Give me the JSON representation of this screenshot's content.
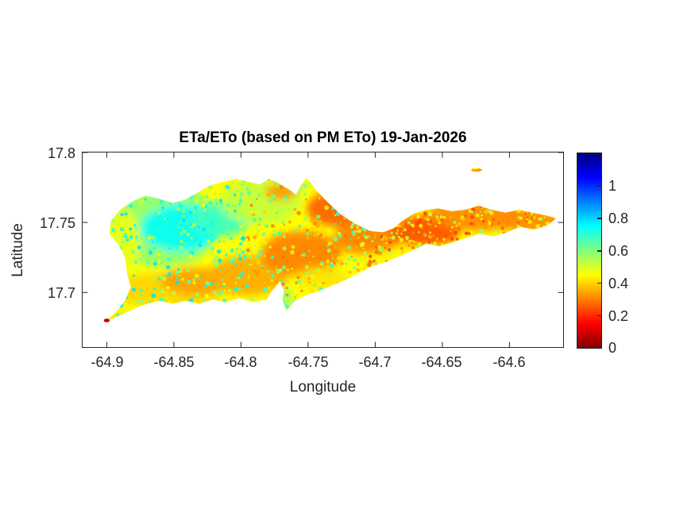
{
  "chart_data": {
    "type": "heatmap",
    "title": "ETa/ETo (based on PM ETo) 19-Jan-2026",
    "xlabel": "Longitude",
    "ylabel": "Latitude",
    "xlim": [
      -64.918,
      -64.56
    ],
    "ylim": [
      17.661,
      17.8
    ],
    "grid": false,
    "x_ticks": [
      -64.9,
      -64.85,
      -64.8,
      -64.75,
      -64.7,
      -64.65,
      -64.6
    ],
    "x_tick_labels": [
      "-64.9",
      "-64.85",
      "-64.8",
      "-64.75",
      "-64.7",
      "-64.65",
      "-64.6"
    ],
    "y_ticks": [
      17.7,
      17.75,
      17.8
    ],
    "y_tick_labels": [
      "17.7",
      "17.75",
      "17.8"
    ],
    "colorbar": {
      "min": 0,
      "max": 1.2,
      "ticks": [
        0,
        0.2,
        0.4,
        0.6,
        0.8,
        1
      ],
      "tick_labels": [
        "0",
        "0.2",
        "0.4",
        "0.6",
        "0.8",
        "1"
      ],
      "colormap": "jet-reversed (0 = dark red, 1.2 = dark blue)",
      "position": "right"
    },
    "map": {
      "description": "Island raster of ETa/ETo ratio; northwest interior highest (cyan/green ~0.6-0.8), central and eastern areas lowest (orange/red ~0.2-0.4) with dense yellow/cyan speckling",
      "base_value": 0.45,
      "outline": [
        [
          -64.901,
          17.679
        ],
        [
          -64.893,
          17.686
        ],
        [
          -64.886,
          17.695
        ],
        [
          -64.882,
          17.704
        ],
        [
          -64.885,
          17.714
        ],
        [
          -64.886,
          17.724
        ],
        [
          -64.891,
          17.734
        ],
        [
          -64.898,
          17.742
        ],
        [
          -64.897,
          17.751
        ],
        [
          -64.89,
          17.759
        ],
        [
          -64.881,
          17.765
        ],
        [
          -64.871,
          17.769
        ],
        [
          -64.861,
          17.767
        ],
        [
          -64.851,
          17.764
        ],
        [
          -64.842,
          17.766
        ],
        [
          -64.833,
          17.771
        ],
        [
          -64.824,
          17.776
        ],
        [
          -64.814,
          17.779
        ],
        [
          -64.804,
          17.781
        ],
        [
          -64.794,
          17.779
        ],
        [
          -64.786,
          17.777
        ],
        [
          -64.779,
          17.781
        ],
        [
          -64.772,
          17.778
        ],
        [
          -64.765,
          17.774
        ],
        [
          -64.759,
          17.77
        ],
        [
          -64.755,
          17.777
        ],
        [
          -64.751,
          17.782
        ],
        [
          -64.745,
          17.774
        ],
        [
          -64.736,
          17.765
        ],
        [
          -64.726,
          17.756
        ],
        [
          -64.715,
          17.749
        ],
        [
          -64.704,
          17.744
        ],
        [
          -64.694,
          17.743
        ],
        [
          -64.686,
          17.746
        ],
        [
          -64.68,
          17.751
        ],
        [
          -64.672,
          17.756
        ],
        [
          -64.663,
          17.759
        ],
        [
          -64.653,
          17.76
        ],
        [
          -64.643,
          17.758
        ],
        [
          -64.633,
          17.759
        ],
        [
          -64.623,
          17.762
        ],
        [
          -64.613,
          17.759
        ],
        [
          -64.603,
          17.757
        ],
        [
          -64.593,
          17.759
        ],
        [
          -64.583,
          17.757
        ],
        [
          -64.573,
          17.755
        ],
        [
          -64.565,
          17.753
        ],
        [
          -64.572,
          17.748
        ],
        [
          -64.582,
          17.745
        ],
        [
          -64.592,
          17.747
        ],
        [
          -64.602,
          17.743
        ],
        [
          -64.612,
          17.74
        ],
        [
          -64.622,
          17.742
        ],
        [
          -64.632,
          17.739
        ],
        [
          -64.642,
          17.736
        ],
        [
          -64.652,
          17.733
        ],
        [
          -64.662,
          17.735
        ],
        [
          -64.672,
          17.73
        ],
        [
          -64.682,
          17.726
        ],
        [
          -64.692,
          17.722
        ],
        [
          -64.702,
          17.719
        ],
        [
          -64.712,
          17.714
        ],
        [
          -64.722,
          17.709
        ],
        [
          -64.732,
          17.705
        ],
        [
          -64.742,
          17.701
        ],
        [
          -64.752,
          17.698
        ],
        [
          -64.76,
          17.694
        ],
        [
          -64.766,
          17.687
        ],
        [
          -64.769,
          17.694
        ],
        [
          -64.768,
          17.701
        ],
        [
          -64.771,
          17.708
        ],
        [
          -64.777,
          17.701
        ],
        [
          -64.781,
          17.695
        ],
        [
          -64.791,
          17.693
        ],
        [
          -64.801,
          17.696
        ],
        [
          -64.811,
          17.693
        ],
        [
          -64.821,
          17.695
        ],
        [
          -64.831,
          17.692
        ],
        [
          -64.841,
          17.694
        ],
        [
          -64.851,
          17.692
        ],
        [
          -64.861,
          17.694
        ],
        [
          -64.87,
          17.692
        ],
        [
          -64.878,
          17.689
        ]
      ],
      "regions": [
        {
          "lon": -64.858,
          "lat": 17.748,
          "rx": 0.042,
          "ry": 0.03,
          "value": 0.58
        },
        {
          "lon": -64.845,
          "lat": 17.746,
          "rx": 0.03,
          "ry": 0.017,
          "value": 0.74
        },
        {
          "lon": -64.815,
          "lat": 17.752,
          "rx": 0.022,
          "ry": 0.012,
          "value": 0.68
        },
        {
          "lon": -64.785,
          "lat": 17.765,
          "rx": 0.03,
          "ry": 0.016,
          "value": 0.52
        },
        {
          "lon": -64.888,
          "lat": 17.735,
          "rx": 0.012,
          "ry": 0.025,
          "value": 0.47
        },
        {
          "lon": -64.855,
          "lat": 17.702,
          "rx": 0.045,
          "ry": 0.012,
          "value": 0.4
        },
        {
          "lon": -64.835,
          "lat": 17.708,
          "rx": 0.025,
          "ry": 0.01,
          "value": 0.34
        },
        {
          "lon": -64.795,
          "lat": 17.712,
          "rx": 0.03,
          "ry": 0.014,
          "value": 0.35
        },
        {
          "lon": -64.755,
          "lat": 17.728,
          "rx": 0.03,
          "ry": 0.016,
          "value": 0.3
        },
        {
          "lon": -64.77,
          "lat": 17.772,
          "rx": 0.012,
          "ry": 0.006,
          "value": 0.33
        },
        {
          "lon": -64.727,
          "lat": 17.76,
          "rx": 0.024,
          "ry": 0.013,
          "value": 0.26
        },
        {
          "lon": -64.705,
          "lat": 17.74,
          "rx": 0.025,
          "ry": 0.013,
          "value": 0.3
        },
        {
          "lon": -64.74,
          "lat": 17.71,
          "rx": 0.02,
          "ry": 0.008,
          "value": 0.42
        },
        {
          "lon": -64.663,
          "lat": 17.744,
          "rx": 0.026,
          "ry": 0.011,
          "value": 0.24
        },
        {
          "lon": -64.672,
          "lat": 17.722,
          "rx": 0.038,
          "ry": 0.01,
          "value": 0.44
        },
        {
          "lon": -64.625,
          "lat": 17.756,
          "rx": 0.035,
          "ry": 0.012,
          "value": 0.31
        },
        {
          "lon": -64.585,
          "lat": 17.751,
          "rx": 0.024,
          "ry": 0.008,
          "value": 0.31
        },
        {
          "lon": -64.66,
          "lat": 17.727,
          "rx": 0.006,
          "ry": 0.003,
          "value": 0.2
        },
        {
          "lon": -64.767,
          "lat": 17.696,
          "rx": 0.004,
          "ry": 0.008,
          "value": 0.62
        },
        {
          "lon": -64.757,
          "lat": 17.776,
          "rx": 0.005,
          "ry": 0.004,
          "value": 0.6
        },
        {
          "lon": -64.893,
          "lat": 17.683,
          "rx": 0.01,
          "ry": 0.005,
          "value": 0.42
        }
      ],
      "spots": [
        {
          "lon": -64.9,
          "lat": 17.68,
          "rx": 0.0022,
          "ry": 0.0013,
          "value": 0.08
        },
        {
          "lon": -64.6245,
          "lat": 17.7875,
          "rx": 0.004,
          "ry": 0.0012,
          "value": 0.33
        },
        {
          "lon": -64.6255,
          "lat": 17.7885,
          "rx": 0.002,
          "ry": 0.0006,
          "value": 0.45
        }
      ],
      "speckle": {
        "seed": 7,
        "count": 1400,
        "west_palette": [
          0.78,
          0.74,
          0.7,
          0.64,
          0.58,
          0.52,
          0.46
        ],
        "mid_palette": [
          0.62,
          0.55,
          0.48,
          0.42,
          0.35,
          0.3,
          0.68
        ],
        "east_palette": [
          0.5,
          0.44,
          0.38,
          0.32,
          0.27,
          0.22,
          0.58
        ]
      }
    }
  }
}
